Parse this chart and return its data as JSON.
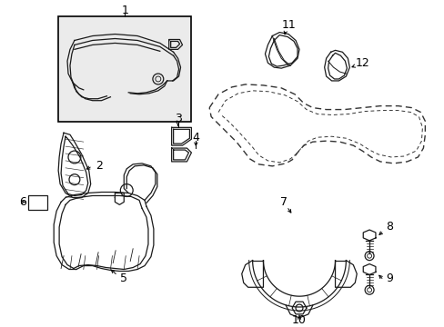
{
  "background_color": "#ffffff",
  "line_color": "#1a1a1a",
  "box_bg": "#f0f0f0",
  "label_fontsize": 8.5,
  "lw": 0.9,
  "figsize": [
    4.89,
    3.6
  ],
  "dpi": 100
}
